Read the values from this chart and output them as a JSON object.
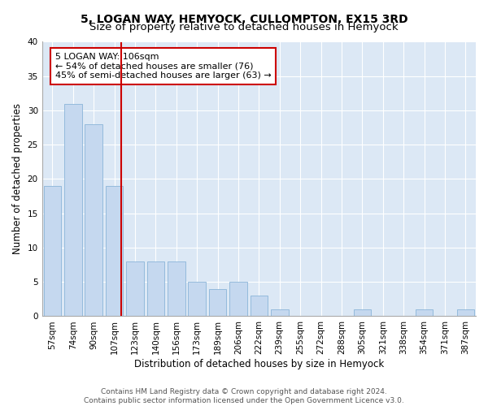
{
  "title": "5, LOGAN WAY, HEMYOCK, CULLOMPTON, EX15 3RD",
  "subtitle": "Size of property relative to detached houses in Hemyock",
  "xlabel": "Distribution of detached houses by size in Hemyock",
  "ylabel": "Number of detached properties",
  "categories": [
    "57sqm",
    "74sqm",
    "90sqm",
    "107sqm",
    "123sqm",
    "140sqm",
    "156sqm",
    "173sqm",
    "189sqm",
    "206sqm",
    "222sqm",
    "239sqm",
    "255sqm",
    "272sqm",
    "288sqm",
    "305sqm",
    "321sqm",
    "338sqm",
    "354sqm",
    "371sqm",
    "387sqm"
  ],
  "values": [
    19,
    31,
    28,
    19,
    8,
    8,
    8,
    5,
    4,
    5,
    3,
    1,
    0,
    0,
    0,
    1,
    0,
    0,
    1,
    0,
    1
  ],
  "bar_color": "#c5d8ef",
  "bar_edge_color": "#8ab4d8",
  "highlight_line_color": "#cc0000",
  "annotation_text": "5 LOGAN WAY: 106sqm\n← 54% of detached houses are smaller (76)\n45% of semi-detached houses are larger (63) →",
  "annotation_box_color": "#ffffff",
  "annotation_box_edge_color": "#cc0000",
  "ylim": [
    0,
    40
  ],
  "yticks": [
    0,
    5,
    10,
    15,
    20,
    25,
    30,
    35,
    40
  ],
  "bg_color": "#dce8f5",
  "footer_text": "Contains HM Land Registry data © Crown copyright and database right 2024.\nContains public sector information licensed under the Open Government Licence v3.0.",
  "title_fontsize": 10,
  "subtitle_fontsize": 9.5,
  "axis_label_fontsize": 8.5,
  "tick_fontsize": 7.5,
  "annotation_fontsize": 8,
  "footer_fontsize": 6.5
}
